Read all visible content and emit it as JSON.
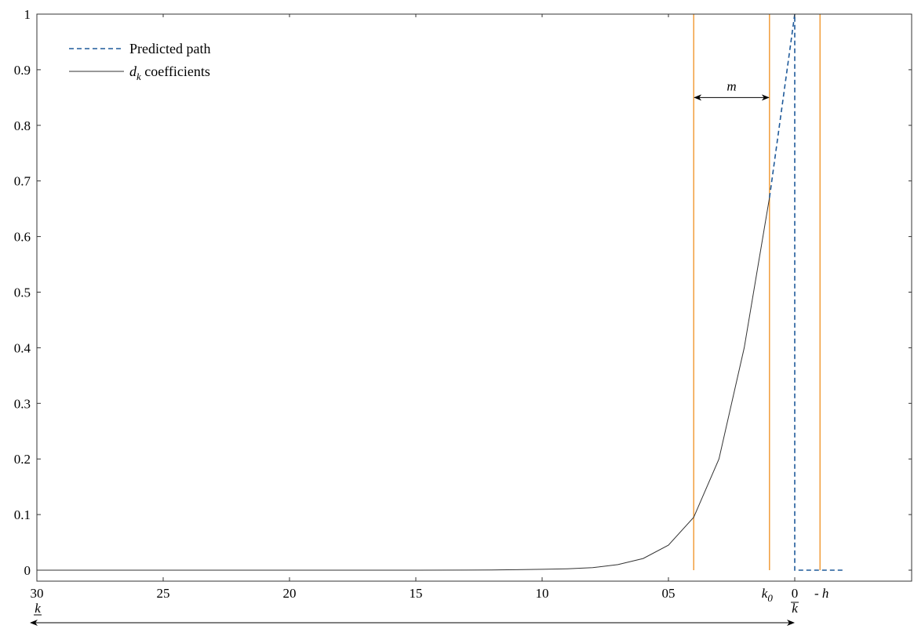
{
  "chart_data": {
    "type": "line",
    "x_axis": {
      "range": [
        30,
        -4.5
      ],
      "direction": "reversed",
      "ticks": [
        30,
        25,
        20,
        15,
        10,
        5,
        0
      ],
      "tick_labels": [
        "30",
        "25",
        "20",
        "15",
        "10",
        "05",
        "0"
      ]
    },
    "y_axis": {
      "range": [
        0,
        1
      ],
      "ticks": [
        0,
        0.1,
        0.2,
        0.3,
        0.4,
        0.5,
        0.6,
        0.7,
        0.8,
        0.9,
        1
      ],
      "tick_labels": [
        "0",
        "0.1",
        "0.2",
        "0.3",
        "0.4",
        "0.5",
        "0.6",
        "0.7",
        "0.8",
        "0.9",
        "1"
      ]
    },
    "grid": false,
    "legend": {
      "placement": "top-left",
      "entries": [
        {
          "label": "Predicted path",
          "style": "dashed",
          "color": "#1f5a9a"
        },
        {
          "label_main": "d",
          "label_sub": "k",
          "label_rest": " coefficients",
          "style": "solid",
          "color": "#333333"
        }
      ]
    },
    "series": [
      {
        "name": "d_k coefficients",
        "color": "#333333",
        "style": "solid",
        "x": [
          30,
          25,
          20,
          15,
          13,
          12,
          11,
          10,
          9,
          8,
          7,
          6,
          5,
          4,
          3,
          2,
          1
        ],
        "y": [
          0,
          0,
          0,
          0,
          0.0002,
          0.0004,
          0.0008,
          0.0015,
          0.0025,
          0.0045,
          0.01,
          0.021,
          0.045,
          0.095,
          0.2,
          0.4,
          0.67
        ]
      },
      {
        "name": "Predicted path",
        "color": "#1f5a9a",
        "style": "dashed",
        "x": [
          1,
          0,
          0,
          -1,
          -2
        ],
        "y": [
          0.67,
          1,
          0,
          0,
          0
        ]
      }
    ],
    "vertical_lines": {
      "color": "#f0901e",
      "x": [
        4,
        1,
        -1
      ]
    },
    "annotations": {
      "m": {
        "text": "m",
        "from_x": 4,
        "to_x": 1,
        "y": 0.85
      },
      "k0": {
        "text": "k",
        "sub": "0",
        "x": 1
      },
      "kbar": {
        "text": "k",
        "x": 0
      },
      "h": {
        "text": "- h",
        "x": -1
      },
      "k_under": {
        "text": "k",
        "x": 30
      },
      "bottom_arrow": {
        "from_x": 30,
        "to_x": 0
      }
    }
  }
}
